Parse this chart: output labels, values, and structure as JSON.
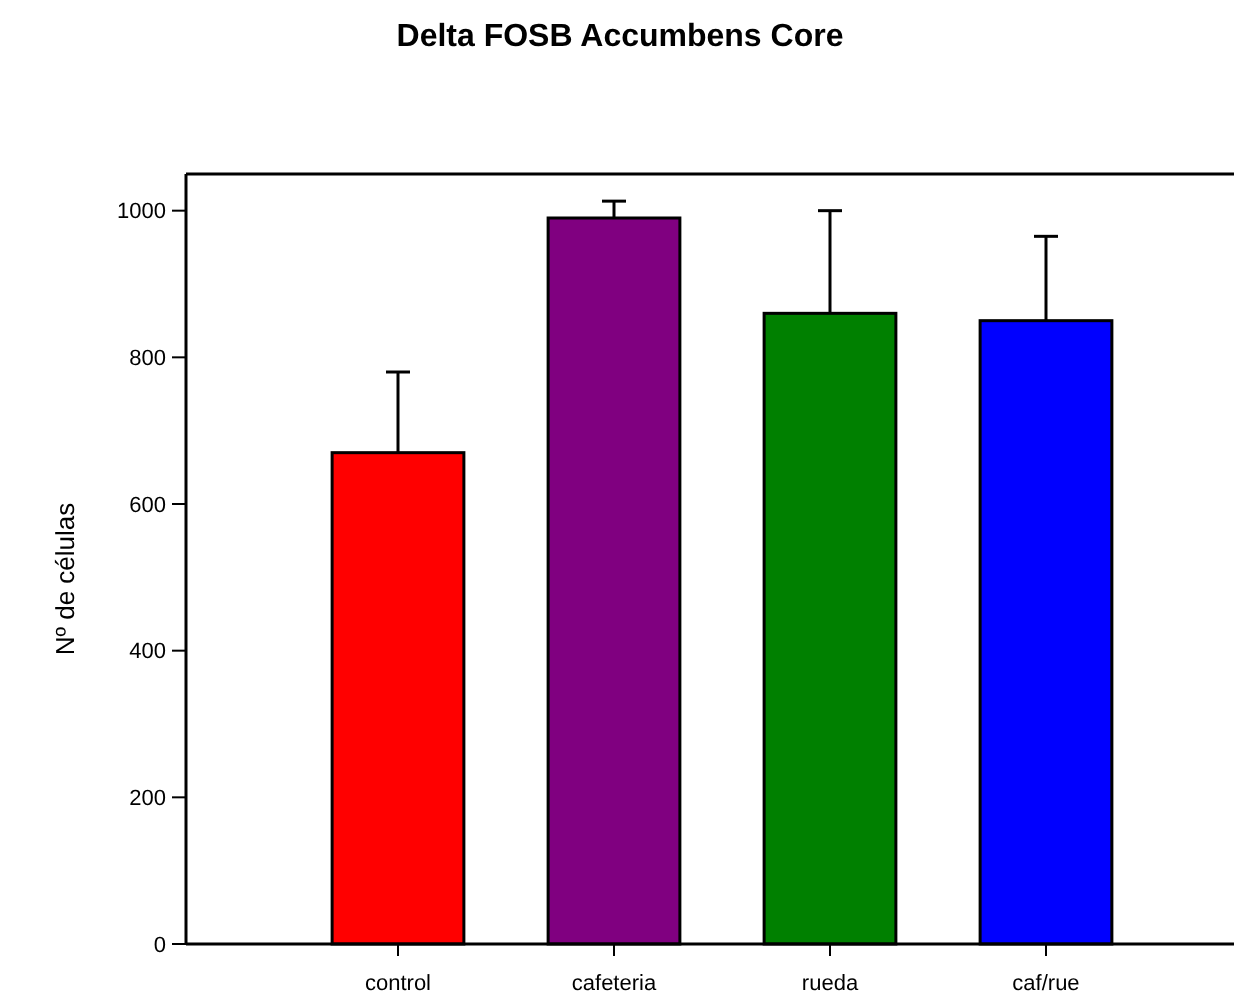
{
  "chart_data": {
    "type": "bar",
    "title": "Delta FOSB Accumbens Core",
    "ylabel": "Nº de células",
    "categories": [
      "control",
      "cafeteria",
      "rueda",
      "caf/rue"
    ],
    "values": [
      670,
      990,
      860,
      850
    ],
    "colors": [
      "#ff0000",
      "#800080",
      "#008000",
      "#0000ff"
    ],
    "errors": [
      110,
      23,
      140,
      115
    ],
    "ylim": [
      0,
      1050
    ],
    "yticks": [
      0,
      200,
      400,
      600,
      800,
      1000
    ],
    "grid": false
  }
}
